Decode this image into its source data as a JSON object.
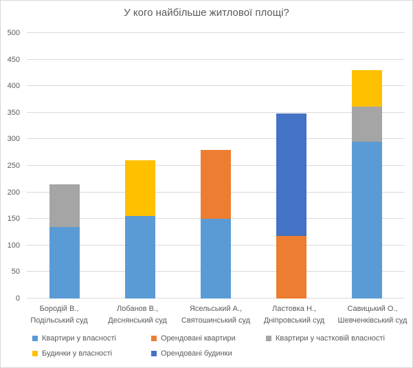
{
  "chart_data": {
    "type": "bar",
    "stacked": true,
    "title": "У кого найбільше житлової площі?",
    "categories": [
      "Бородій В.,\nПодільський суд",
      "Лобанов В.,\nДеснянський суд",
      "Ясельський А.,\nСвятошинський суд",
      "Ластовка Н.,\nДніпровський суд",
      "Савицький О.,\nШевченківський суд"
    ],
    "series": [
      {
        "name": "Квартири у власності",
        "color": "#5B9BD5",
        "values": [
          135,
          155,
          150,
          0,
          295
        ]
      },
      {
        "name": "Орендовані квартири",
        "color": "#ED7D31",
        "values": [
          0,
          0,
          130,
          118,
          0
        ]
      },
      {
        "name": "Квартири у частковій власності",
        "color": "#A5A5A5",
        "values": [
          80,
          0,
          0,
          0,
          67
        ]
      },
      {
        "name": "Будинки у власності",
        "color": "#FFC000",
        "values": [
          0,
          105,
          0,
          0,
          68
        ]
      },
      {
        "name": "Орендовані будинки",
        "color": "#4472C4",
        "values": [
          0,
          0,
          0,
          230,
          0
        ]
      }
    ],
    "totals": [
      215,
      260,
      280,
      348,
      430
    ],
    "xlabel": "",
    "ylabel": "",
    "ylim": [
      0,
      500
    ],
    "ytick_step": 50,
    "grid": true,
    "legend_position": "bottom",
    "legend_rows": [
      [
        0,
        1,
        2
      ],
      [
        3,
        4
      ]
    ],
    "text_color": "#595959",
    "gridline_color": "#D9D9D9"
  }
}
